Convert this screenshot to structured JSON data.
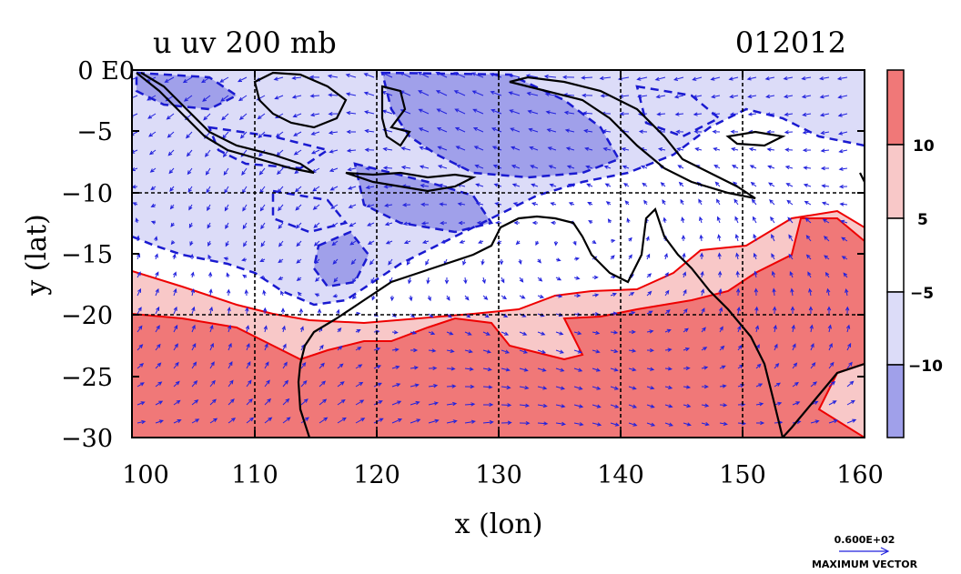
{
  "header": {
    "title": "u uv 200 mb",
    "datecode": "012012"
  },
  "axes": {
    "xlabel": "x (lon)",
    "ylabel": "y (lat)",
    "x_ticks": [
      "100",
      "110",
      "120",
      "130",
      "140",
      "150",
      "160"
    ],
    "y_ticks": [
      "0 E0",
      "−5",
      "−10",
      "−15",
      "−20",
      "−25",
      "−30"
    ],
    "x_range": [
      100,
      160
    ],
    "y_range": [
      -30,
      0
    ]
  },
  "colorbar": {
    "labels": [
      "10",
      "5",
      "−5",
      "−10"
    ],
    "colors": [
      "#f07878",
      "#f8c8c8",
      "#ffffff",
      "#dcdcf8",
      "#a0a0ea"
    ]
  },
  "vector_key": {
    "magnitude": "0.600E+02",
    "caption": "MAXIMUM VECTOR"
  },
  "colors": {
    "positive_strong": "#f07878",
    "positive_weak": "#f8c8c8",
    "negative_weak": "#dcdcf8",
    "negative_strong": "#a0a0ea",
    "coast": "#000000",
    "positive_contour": "#ee0000",
    "negative_contour": "#1a1ad0",
    "vector": "#2222dd",
    "grid": "#000000"
  }
}
